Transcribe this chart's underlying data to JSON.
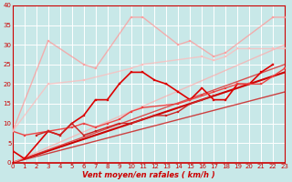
{
  "xlabel": "Vent moyen/en rafales ( km/h )",
  "xlim": [
    0,
    23
  ],
  "ylim": [
    0,
    40
  ],
  "yticks": [
    0,
    5,
    10,
    15,
    20,
    25,
    30,
    35,
    40
  ],
  "xticks": [
    0,
    1,
    2,
    3,
    4,
    5,
    6,
    7,
    8,
    9,
    10,
    11,
    12,
    13,
    14,
    15,
    16,
    17,
    18,
    19,
    20,
    21,
    22,
    23
  ],
  "bg_color": "#c8e8e8",
  "grid_color": "#ffffff",
  "series": [
    {
      "comment": "bright red line with markers - zigzag pattern, goes 0->1->3->4->5->6->7->8->9->10->11->12->13->14->15->16->17->18->19->20->21->22",
      "x": [
        0,
        1,
        3,
        4,
        5,
        6,
        7,
        8,
        9,
        10,
        11,
        12,
        13,
        14,
        15,
        16,
        17,
        18,
        19,
        20,
        21,
        22
      ],
      "y": [
        3,
        1,
        8,
        7,
        10,
        12,
        16,
        16,
        20,
        23,
        23,
        21,
        20,
        18,
        16,
        19,
        16,
        16,
        20,
        20,
        23,
        25
      ],
      "color": "#dd0000",
      "lw": 1.2,
      "marker": "s",
      "ms": 2.0,
      "alpha": 1.0
    },
    {
      "x": [
        0,
        1,
        5,
        6,
        7,
        8,
        9,
        10,
        11,
        14,
        15,
        16,
        17,
        18,
        19,
        20,
        21,
        22,
        23
      ],
      "y": [
        8,
        7,
        9,
        10,
        9,
        10,
        11,
        13,
        14,
        15,
        16,
        17,
        18,
        19,
        20,
        20,
        20,
        22,
        24
      ],
      "color": "#ee4444",
      "lw": 1.0,
      "marker": "s",
      "ms": 1.8,
      "alpha": 1.0
    },
    {
      "x": [
        2,
        3,
        4,
        5,
        6,
        7,
        8,
        9,
        10,
        11,
        12,
        13,
        14,
        15,
        16,
        17
      ],
      "y": [
        7,
        8,
        7,
        10,
        7,
        8,
        9,
        10,
        10,
        11,
        12,
        12,
        13,
        15,
        16,
        17
      ],
      "color": "#cc2222",
      "lw": 1.0,
      "marker": "s",
      "ms": 1.8,
      "alpha": 1.0
    },
    {
      "x": [
        0,
        3,
        6,
        7,
        10,
        11,
        14,
        15,
        17,
        18,
        22,
        23
      ],
      "y": [
        8,
        31,
        25,
        24,
        37,
        37,
        30,
        31,
        27,
        28,
        37,
        37
      ],
      "color": "#ff9999",
      "lw": 1.0,
      "marker": "s",
      "ms": 1.8,
      "alpha": 0.75
    },
    {
      "x": [
        0,
        3,
        6,
        10,
        11,
        16,
        17,
        18,
        19,
        20,
        22,
        23
      ],
      "y": [
        8,
        20,
        21,
        24,
        25,
        27,
        26,
        27,
        29,
        29,
        29,
        29
      ],
      "color": "#ffbbbb",
      "lw": 1.0,
      "marker": "s",
      "ms": 1.8,
      "alpha": 0.75
    },
    {
      "x": [
        0,
        23
      ],
      "y": [
        0,
        23
      ],
      "color": "#cc0000",
      "lw": 1.5,
      "marker": null,
      "ms": 0,
      "alpha": 1.0
    },
    {
      "x": [
        0,
        23
      ],
      "y": [
        0,
        25
      ],
      "color": "#dd3333",
      "lw": 1.0,
      "marker": null,
      "ms": 0,
      "alpha": 0.85
    },
    {
      "x": [
        0,
        23
      ],
      "y": [
        0,
        18
      ],
      "color": "#cc2222",
      "lw": 1.0,
      "marker": null,
      "ms": 0,
      "alpha": 0.85
    },
    {
      "x": [
        0,
        23
      ],
      "y": [
        0,
        30
      ],
      "color": "#ffaaaa",
      "lw": 1.0,
      "marker": null,
      "ms": 0,
      "alpha": 0.7
    }
  ]
}
